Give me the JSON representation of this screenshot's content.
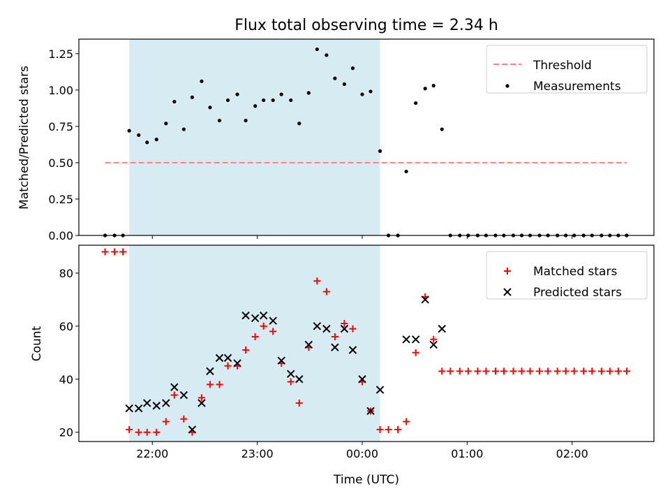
{
  "chart_data": [
    {
      "type": "scatter",
      "title": "Flux total observing time = 2.34 h",
      "xlabel": "",
      "ylabel": "Matched/Predicted stars",
      "ylim": [
        0,
        1.35
      ],
      "yticks": [
        "0.00",
        "0.25",
        "0.50",
        "0.75",
        "1.00",
        "1.25"
      ],
      "xlim_hours": [
        21.3,
        26.78
      ],
      "highlight_span_hours": [
        21.78,
        24.17
      ],
      "legend_position": "upper-right",
      "threshold": {
        "name": "Threshold",
        "value": 0.5,
        "x_hours": [
          21.55,
          26.52
        ],
        "color": "#ff7f7f"
      },
      "series": [
        {
          "name": "Measurements",
          "color": "#000000",
          "marker": "dot",
          "x_hours": [
            21.55,
            21.64,
            21.72,
            21.78,
            21.87,
            21.95,
            22.04,
            22.13,
            22.21,
            22.3,
            22.38,
            22.47,
            22.55,
            22.64,
            22.72,
            22.81,
            22.89,
            22.98,
            23.06,
            23.15,
            23.23,
            23.32,
            23.4,
            23.49,
            23.57,
            23.66,
            23.74,
            23.83,
            23.91,
            24.0,
            24.08,
            24.17,
            24.25,
            24.34,
            24.42,
            24.51,
            24.6,
            24.68,
            24.76,
            24.84,
            24.93,
            25.01,
            25.1,
            25.18,
            25.27,
            25.35,
            25.44,
            25.52,
            25.6,
            25.69,
            25.77,
            25.86,
            25.94,
            26.02,
            26.11,
            26.19,
            26.28,
            26.36,
            26.44,
            26.52
          ],
          "y": [
            0,
            0,
            0,
            0.72,
            0.69,
            0.64,
            0.66,
            0.77,
            0.92,
            0.73,
            0.95,
            1.06,
            0.88,
            0.79,
            0.93,
            0.97,
            0.79,
            0.89,
            0.93,
            0.93,
            0.97,
            0.93,
            0.77,
            0.98,
            1.28,
            1.24,
            1.08,
            1.04,
            1.15,
            0.97,
            0.99,
            0.58,
            0,
            0,
            0.44,
            0.91,
            1.01,
            1.03,
            0.73,
            0,
            0,
            0,
            0,
            0,
            0,
            0,
            0,
            0,
            0,
            0,
            0,
            0,
            0,
            0,
            0,
            0,
            0,
            0,
            0,
            0
          ]
        }
      ]
    },
    {
      "type": "scatter",
      "title": "",
      "xlabel": "Time (UTC)",
      "ylabel": "Count",
      "ylim": [
        16.5,
        90.5
      ],
      "yticks": [
        "20",
        "40",
        "60",
        "80"
      ],
      "xlim_hours": [
        21.3,
        26.78
      ],
      "xticks": [
        {
          "label": "22:00",
          "value": 22
        },
        {
          "label": "23:00",
          "value": 23
        },
        {
          "label": "00:00",
          "value": 24
        },
        {
          "label": "01:00",
          "value": 25
        },
        {
          "label": "02:00",
          "value": 26
        }
      ],
      "highlight_span_hours": [
        21.78,
        24.17
      ],
      "legend_position": "upper-right",
      "series": [
        {
          "name": "Matched stars",
          "color": "#ff0000",
          "marker": "plus",
          "x_hours": [
            21.55,
            21.64,
            21.72,
            21.78,
            21.87,
            21.95,
            22.04,
            22.13,
            22.21,
            22.3,
            22.38,
            22.47,
            22.55,
            22.64,
            22.72,
            22.81,
            22.89,
            22.98,
            23.06,
            23.15,
            23.23,
            23.32,
            23.4,
            23.49,
            23.57,
            23.66,
            23.74,
            23.83,
            23.91,
            24.0,
            24.08,
            24.17,
            24.25,
            24.34,
            24.42,
            24.51,
            24.6,
            24.68,
            24.76,
            24.84,
            24.93,
            25.01,
            25.1,
            25.18,
            25.27,
            25.35,
            25.44,
            25.52,
            25.6,
            25.69,
            25.77,
            25.86,
            25.94,
            26.02,
            26.11,
            26.19,
            26.28,
            26.36,
            26.44,
            26.52
          ],
          "y": [
            88,
            88,
            88,
            21,
            20,
            20,
            20,
            24,
            34,
            25,
            20,
            33,
            38,
            38,
            45,
            45,
            51,
            56,
            60,
            58,
            46,
            39,
            31,
            52,
            77,
            73,
            56,
            61,
            59,
            39,
            28,
            21,
            21,
            21,
            24,
            50,
            71,
            55,
            43,
            43,
            43,
            43,
            43,
            43,
            43,
            43,
            43,
            43,
            43,
            43,
            43,
            43,
            43,
            43,
            43,
            43,
            43,
            43,
            43,
            43
          ]
        },
        {
          "name": "Predicted stars",
          "color": "#000000",
          "marker": "x",
          "x_hours": [
            21.78,
            21.87,
            21.95,
            22.04,
            22.13,
            22.21,
            22.3,
            22.38,
            22.47,
            22.55,
            22.64,
            22.72,
            22.81,
            22.89,
            22.98,
            23.06,
            23.15,
            23.23,
            23.32,
            23.4,
            23.49,
            23.57,
            23.66,
            23.74,
            23.83,
            23.91,
            24.0,
            24.08,
            24.17,
            24.42,
            24.51,
            24.6,
            24.68,
            24.76
          ],
          "y": [
            29,
            29,
            31,
            30,
            31,
            37,
            34,
            21,
            31,
            43,
            48,
            48,
            46,
            64,
            63,
            64,
            62,
            47,
            42,
            40,
            53,
            60,
            59,
            52,
            59,
            51,
            40,
            28,
            36,
            55,
            55,
            70,
            53,
            59
          ]
        }
      ]
    }
  ]
}
